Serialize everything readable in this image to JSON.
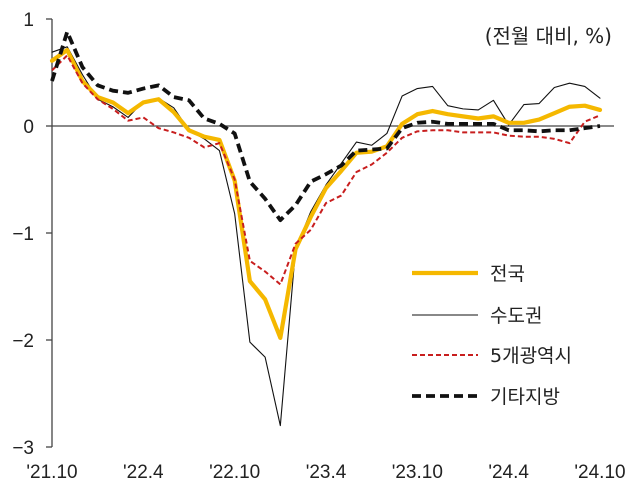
{
  "chart_data": {
    "type": "line",
    "unit_label": "(전월 대비, %)",
    "x": [
      "'21.10",
      "'21.11",
      "'21.12",
      "'22.1",
      "'22.2",
      "'22.3",
      "'22.4",
      "'22.5",
      "'22.6",
      "'22.7",
      "'22.8",
      "'22.9",
      "'22.10",
      "'22.11",
      "'22.12",
      "'23.1",
      "'23.2",
      "'23.3",
      "'23.4",
      "'23.5",
      "'23.6",
      "'23.7",
      "'23.8",
      "'23.9",
      "'23.10",
      "'23.11",
      "'23.12",
      "'24.1",
      "'24.2",
      "'24.3",
      "'24.4",
      "'24.5",
      "'24.6",
      "'24.7",
      "'24.8",
      "'24.9",
      "'24.10"
    ],
    "x_tick_labels": [
      "'21.10",
      "'22.4",
      "'22.10",
      "'23.4",
      "'23.10",
      "'24.4",
      "'24.10"
    ],
    "y_ticks": [
      1,
      0,
      -1,
      -2,
      -3
    ],
    "y_tick_labels": [
      "1",
      "0",
      "−1",
      "−2",
      "−3"
    ],
    "ylim": [
      -3,
      1
    ],
    "grid": false,
    "legend_position": "lower-right",
    "colors": {
      "axis": "#444444",
      "zero_line": "#444444"
    },
    "series": [
      {
        "name": "전국",
        "color": "#F5B800",
        "style": "solid-thick",
        "values": [
          0.61,
          0.71,
          0.42,
          0.27,
          0.22,
          0.12,
          0.22,
          0.25,
          0.13,
          -0.04,
          -0.1,
          -0.13,
          -0.51,
          -1.45,
          -1.62,
          -1.98,
          -1.15,
          -0.85,
          -0.58,
          -0.42,
          -0.25,
          -0.24,
          -0.19,
          0.02,
          0.11,
          0.14,
          0.11,
          0.09,
          0.07,
          0.09,
          0.03,
          0.03,
          0.06,
          0.12,
          0.18,
          0.19,
          0.15
        ]
      },
      {
        "name": "수도권",
        "color": "#111111",
        "style": "solid-thin",
        "values": [
          0.69,
          0.74,
          0.48,
          0.25,
          0.18,
          0.08,
          0.23,
          0.26,
          0.17,
          -0.04,
          -0.12,
          -0.23,
          -0.82,
          -2.02,
          -2.16,
          -2.8,
          -1.15,
          -0.8,
          -0.55,
          -0.35,
          -0.15,
          -0.18,
          -0.07,
          0.28,
          0.35,
          0.37,
          0.19,
          0.16,
          0.15,
          0.24,
          0.01,
          0.2,
          0.21,
          0.36,
          0.4,
          0.37,
          0.26
        ]
      },
      {
        "name": "5개광역시",
        "color": "#C81E1E",
        "style": "dashed",
        "values": [
          0.52,
          0.66,
          0.4,
          0.25,
          0.16,
          0.05,
          0.08,
          -0.02,
          -0.06,
          -0.11,
          -0.2,
          -0.16,
          -0.5,
          -1.26,
          -1.36,
          -1.48,
          -1.1,
          -0.97,
          -0.72,
          -0.65,
          -0.43,
          -0.36,
          -0.25,
          -0.11,
          -0.05,
          -0.04,
          -0.04,
          -0.06,
          -0.06,
          -0.06,
          -0.09,
          -0.1,
          -0.1,
          -0.12,
          -0.16,
          0.04,
          0.1
        ]
      },
      {
        "name": "기타지방",
        "color": "#111111",
        "style": "dashed-thick",
        "values": [
          0.42,
          0.88,
          0.55,
          0.38,
          0.33,
          0.31,
          0.35,
          0.38,
          0.27,
          0.24,
          0.07,
          0.02,
          -0.07,
          -0.52,
          -0.68,
          -0.88,
          -0.74,
          -0.52,
          -0.45,
          -0.37,
          -0.23,
          -0.22,
          -0.21,
          -0.02,
          0.03,
          0.04,
          0.02,
          0.02,
          0.02,
          0.02,
          -0.04,
          -0.04,
          -0.05,
          -0.04,
          -0.04,
          -0.02,
          0.0
        ]
      }
    ]
  }
}
